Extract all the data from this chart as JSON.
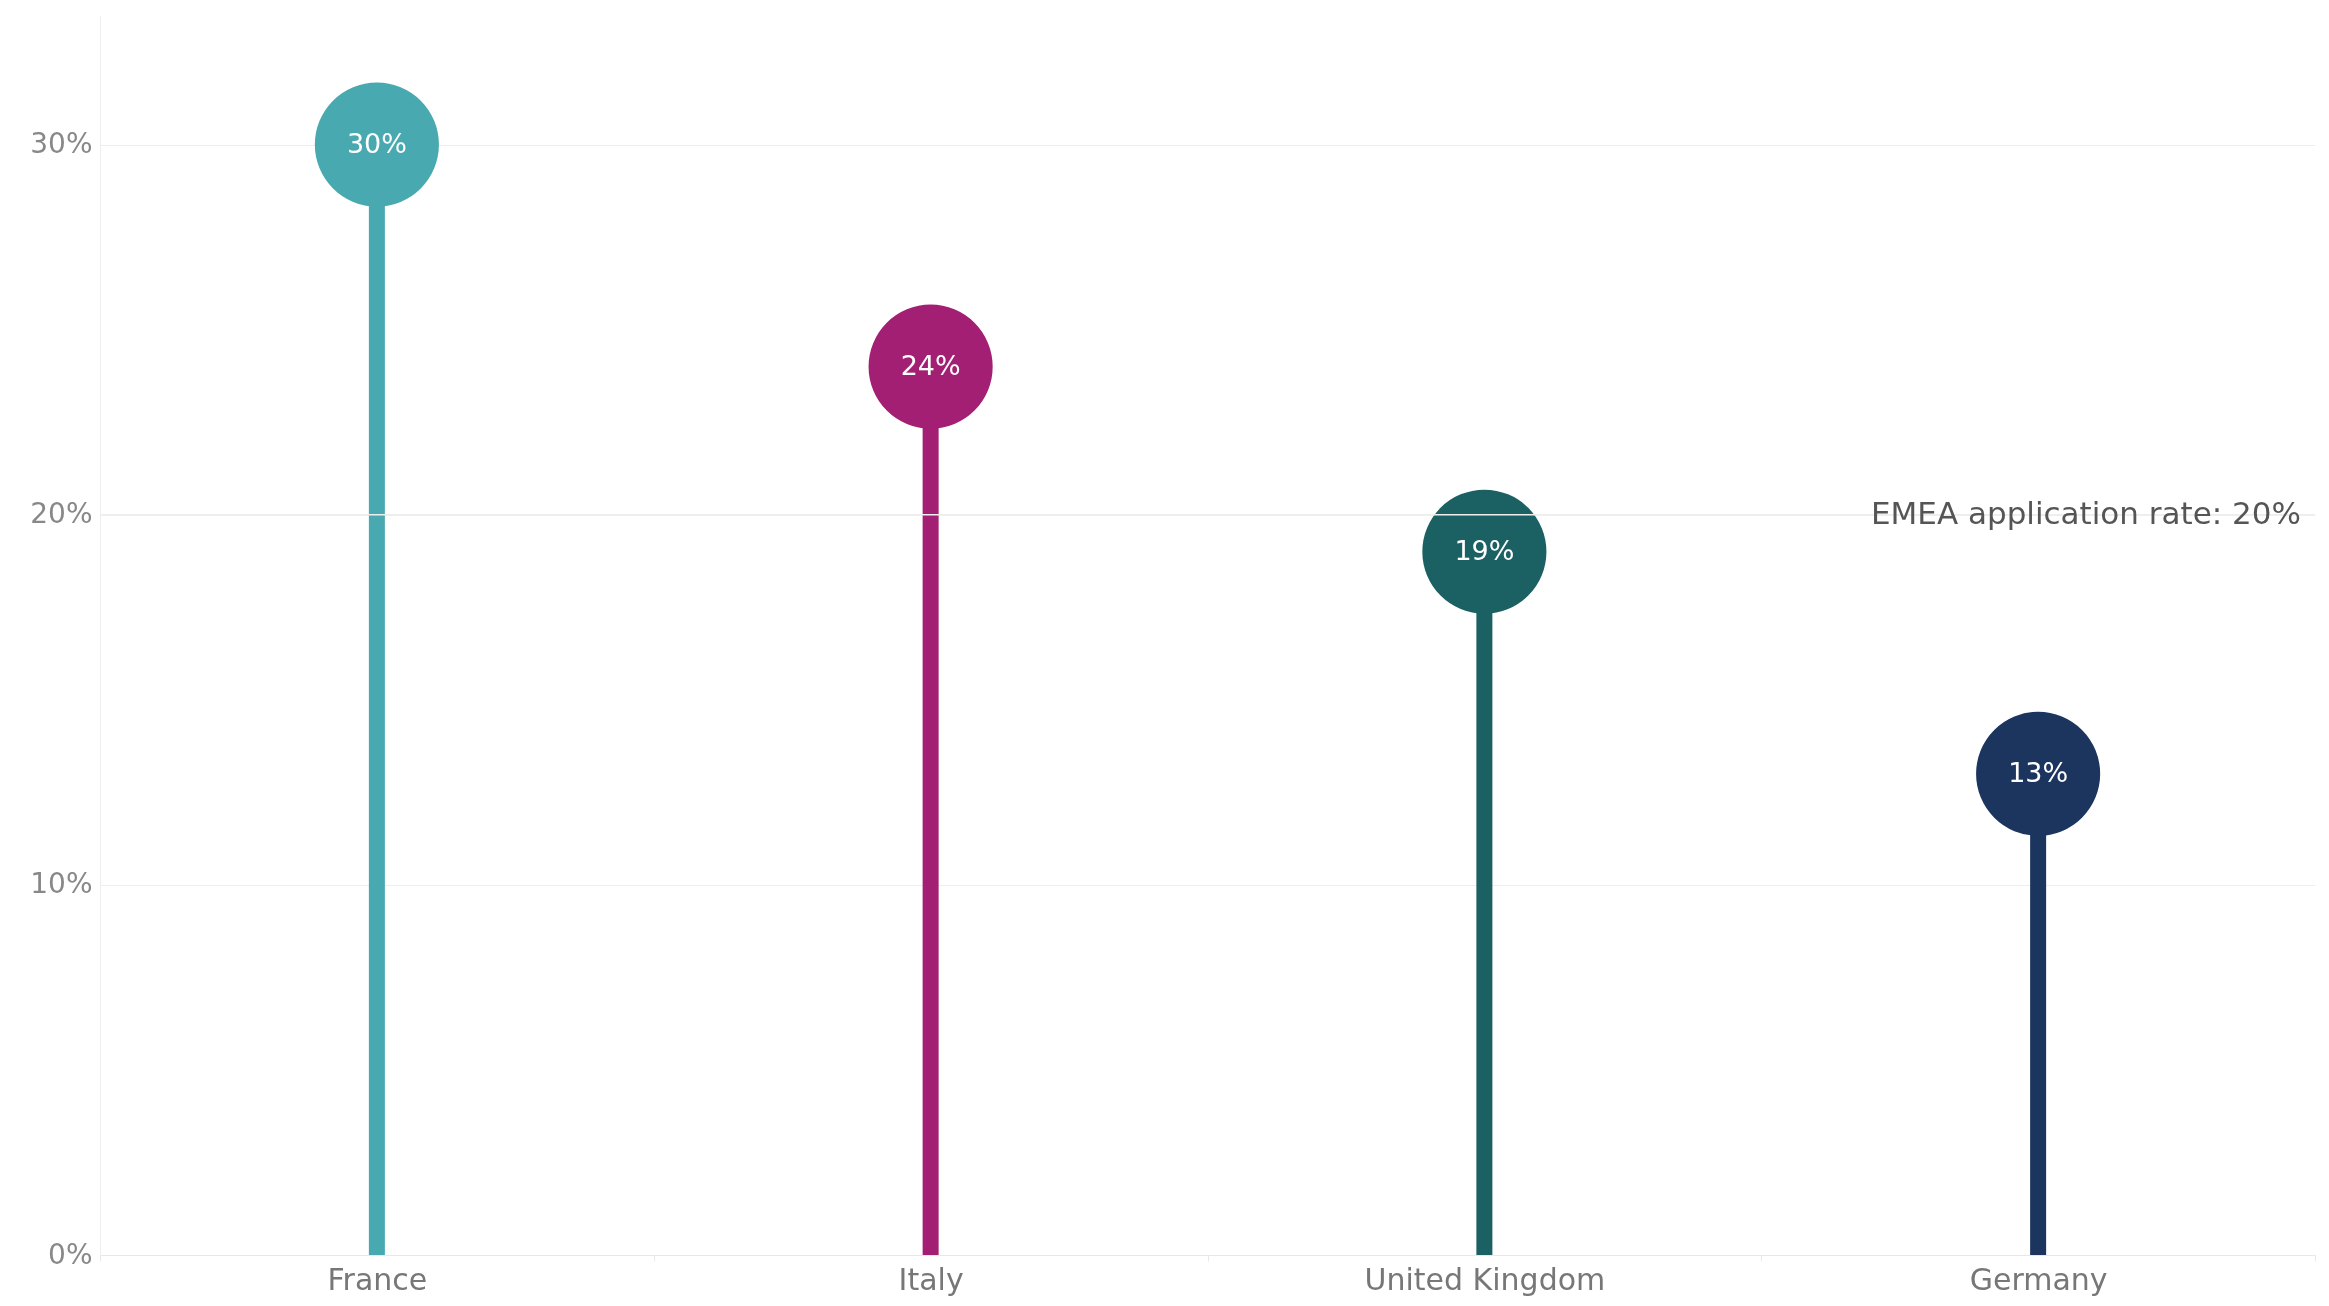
{
  "chart_data": {
    "type": "lollipop",
    "categories": [
      "France",
      "Italy",
      "United Kingdom",
      "Germany"
    ],
    "values": [
      30,
      24,
      19,
      13
    ],
    "colors": [
      "#48a9b0",
      "#a31f73",
      "#1b6163",
      "#1c355e"
    ],
    "ylim": [
      0,
      33.5
    ],
    "yticks": [
      {
        "value": 0,
        "label": "0%"
      },
      {
        "value": 10,
        "label": "10%"
      },
      {
        "value": 20,
        "label": "20%"
      },
      {
        "value": 30,
        "label": "30%"
      }
    ],
    "value_labels": [
      "30%",
      "24%",
      "19%",
      "13%"
    ],
    "ref_lines": [
      {
        "axis": "y",
        "value": 20,
        "label": "EMEA application rate: 20%",
        "color": "#eeeeee"
      }
    ],
    "grid": "y",
    "marker": "circle"
  }
}
